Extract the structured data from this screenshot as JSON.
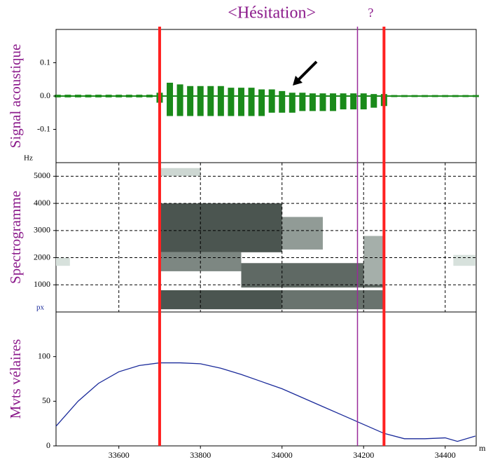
{
  "chart_data": [
    {
      "type": "waveform",
      "y_label": "Signal acoustique",
      "color": "#1a8a1a",
      "xlim": [
        33446,
        34476
      ],
      "ylim": [
        -0.2,
        0.2
      ],
      "yticks": [
        -0.1,
        {
          "value": 0,
          "label": "0.0"
        },
        0.1
      ],
      "x": [
        33450,
        33475,
        33500,
        33525,
        33550,
        33575,
        33600,
        33625,
        33650,
        33675,
        33700,
        33725,
        33750,
        33775,
        33800,
        33825,
        33850,
        33875,
        33900,
        33925,
        33950,
        33975,
        34000,
        34025,
        34050,
        34075,
        34100,
        34125,
        34150,
        34175,
        34200,
        34225,
        34250,
        34275,
        34300,
        34325,
        34350,
        34375,
        34400,
        34425,
        34450,
        34475
      ],
      "max": [
        0.004,
        0.004,
        0.004,
        0.004,
        0.004,
        0.004,
        0.004,
        0.004,
        0.004,
        0.004,
        0.01,
        0.04,
        0.035,
        0.03,
        0.03,
        0.03,
        0.03,
        0.025,
        0.025,
        0.025,
        0.02,
        0.02,
        0.015,
        0.01,
        0.01,
        0.008,
        0.008,
        0.008,
        0.008,
        0.008,
        0.008,
        0.006,
        0.006,
        0.003,
        0.003,
        0.003,
        0.003,
        0.003,
        0.003,
        0.003,
        0.003,
        0.003
      ],
      "min": [
        -0.004,
        -0.004,
        -0.004,
        -0.004,
        -0.004,
        -0.004,
        -0.004,
        -0.004,
        -0.004,
        -0.004,
        -0.02,
        -0.06,
        -0.06,
        -0.06,
        -0.06,
        -0.06,
        -0.06,
        -0.06,
        -0.06,
        -0.06,
        -0.06,
        -0.05,
        -0.05,
        -0.05,
        -0.045,
        -0.045,
        -0.045,
        -0.045,
        -0.04,
        -0.04,
        -0.04,
        -0.035,
        -0.03,
        -0.003,
        -0.003,
        -0.003,
        -0.003,
        -0.003,
        -0.003,
        -0.003,
        -0.003,
        -0.003
      ]
    },
    {
      "type": "spectrogram",
      "y_label": "Spectrogramme",
      "y_unit": "Hz",
      "grid": true,
      "xlim": [
        33446,
        34476
      ],
      "ylim": [
        0,
        5500
      ],
      "yticks": [
        1000,
        2000,
        3000,
        4000,
        5000
      ],
      "cells": [
        {
          "x0": 33700,
          "x1": 34000,
          "f0": 100,
          "f1": 800,
          "level": 0.85
        },
        {
          "x0": 34000,
          "x1": 34250,
          "f0": 100,
          "f1": 800,
          "level": 0.7
        },
        {
          "x0": 33700,
          "x1": 34000,
          "f0": 2200,
          "f1": 4000,
          "level": 0.85
        },
        {
          "x0": 34000,
          "x1": 34100,
          "f0": 2300,
          "f1": 3500,
          "level": 0.5
        },
        {
          "x0": 33700,
          "x1": 33900,
          "f0": 1500,
          "f1": 2200,
          "level": 0.6
        },
        {
          "x0": 33900,
          "x1": 34250,
          "f0": 900,
          "f1": 1800,
          "level": 0.75
        },
        {
          "x0": 33700,
          "x1": 33800,
          "f0": 5000,
          "f1": 5300,
          "level": 0.2
        },
        {
          "x0": 33446,
          "x1": 33480,
          "f0": 1700,
          "f1": 2000,
          "level": 0.15
        },
        {
          "x0": 34200,
          "x1": 34250,
          "f0": 1000,
          "f1": 2800,
          "level": 0.4
        },
        {
          "x0": 34420,
          "x1": 34474,
          "f0": 1700,
          "f1": 2100,
          "level": 0.15
        }
      ]
    },
    {
      "type": "line",
      "y_label": "Mvts vélaires",
      "y_unit": "px",
      "x_label": "ms",
      "color": "#1a2a9a",
      "xlim": [
        33446,
        34476
      ],
      "ylim": [
        0,
        150
      ],
      "yticks": [
        0,
        50,
        100
      ],
      "xticks": [
        33600,
        33800,
        34000,
        34200,
        34400
      ],
      "x": [
        33446,
        33500,
        33550,
        33600,
        33650,
        33700,
        33750,
        33800,
        33850,
        33900,
        33950,
        34000,
        34050,
        34100,
        34150,
        34200,
        34250,
        34300,
        34350,
        34400,
        34430,
        34474
      ],
      "values": [
        22,
        50,
        70,
        83,
        90,
        93,
        93,
        92,
        87,
        80,
        72,
        64,
        54,
        44,
        34,
        24,
        14,
        8,
        8,
        9,
        5,
        11
      ]
    }
  ],
  "markers": [
    {
      "x": 33700,
      "color": "#ff2020"
    },
    {
      "x": 34185,
      "color": "#9a2a9a"
    },
    {
      "x": 34250,
      "color": "#ff2020"
    }
  ],
  "annotations": [
    "<Hésitation>",
    "?"
  ]
}
